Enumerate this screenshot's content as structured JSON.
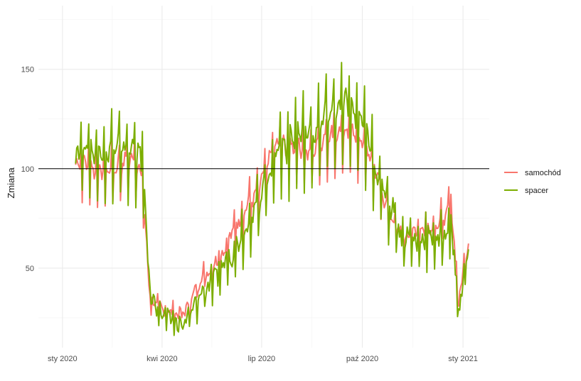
{
  "chart_data": {
    "type": "line",
    "title": "",
    "xlabel": "",
    "ylabel": "Zmiana",
    "x_range": [
      "2019-12-10",
      "2021-01-25"
    ],
    "ylim": [
      10,
      182
    ],
    "grid": true,
    "reference_line": 100,
    "legend_position": "right",
    "x_ticks": [
      {
        "date": "2020-01-01",
        "label": "sty 2020"
      },
      {
        "date": "2020-04-01",
        "label": "kwi 2020"
      },
      {
        "date": "2020-07-01",
        "label": "lip 2020"
      },
      {
        "date": "2020-10-01",
        "label": "paź 2020"
      },
      {
        "date": "2021-01-01",
        "label": "sty 2021"
      }
    ],
    "y_ticks": [
      50,
      100,
      150
    ],
    "series": [
      {
        "name": "samochód",
        "color": "#F8766D",
        "points": [
          [
            "2020-01-13",
            102
          ],
          [
            "2020-01-22",
            103
          ],
          [
            "2020-02-01",
            99
          ],
          [
            "2020-02-10",
            100
          ],
          [
            "2020-02-20",
            101
          ],
          [
            "2020-02-29",
            104
          ],
          [
            "2020-03-07",
            105
          ],
          [
            "2020-03-14",
            93
          ],
          [
            "2020-03-18",
            60
          ],
          [
            "2020-03-21",
            34
          ],
          [
            "2020-03-28",
            31
          ],
          [
            "2020-04-04",
            29
          ],
          [
            "2020-04-11",
            28
          ],
          [
            "2020-04-18",
            27
          ],
          [
            "2020-04-25",
            30
          ],
          [
            "2020-05-01",
            38
          ],
          [
            "2020-05-08",
            46
          ],
          [
            "2020-05-15",
            48
          ],
          [
            "2020-05-22",
            55
          ],
          [
            "2020-05-29",
            60
          ],
          [
            "2020-06-05",
            70
          ],
          [
            "2020-06-12",
            76
          ],
          [
            "2020-06-19",
            84
          ],
          [
            "2020-06-26",
            87
          ],
          [
            "2020-07-03",
            97
          ],
          [
            "2020-07-10",
            106
          ],
          [
            "2020-07-17",
            113
          ],
          [
            "2020-07-24",
            110
          ],
          [
            "2020-07-31",
            113
          ],
          [
            "2020-08-07",
            111
          ],
          [
            "2020-08-14",
            108
          ],
          [
            "2020-08-21",
            112
          ],
          [
            "2020-08-28",
            115
          ],
          [
            "2020-09-04",
            116
          ],
          [
            "2020-09-11",
            117
          ],
          [
            "2020-09-18",
            118
          ],
          [
            "2020-09-25",
            115
          ],
          [
            "2020-10-02",
            113
          ],
          [
            "2020-10-09",
            105
          ],
          [
            "2020-10-16",
            95
          ],
          [
            "2020-10-23",
            80
          ],
          [
            "2020-10-30",
            73
          ],
          [
            "2020-11-06",
            66
          ],
          [
            "2020-11-13",
            67
          ],
          [
            "2020-11-20",
            69
          ],
          [
            "2020-11-27",
            70
          ],
          [
            "2020-12-04",
            71
          ],
          [
            "2020-12-11",
            74
          ],
          [
            "2020-12-18",
            78
          ],
          [
            "2020-12-21",
            86
          ],
          [
            "2020-12-24",
            62
          ],
          [
            "2020-12-28",
            33
          ],
          [
            "2021-01-01",
            47
          ],
          [
            "2021-01-04",
            58
          ],
          [
            "2021-01-06",
            62
          ]
        ]
      },
      {
        "name": "spacer",
        "color": "#7CAE00",
        "points": [
          [
            "2020-01-13",
            107
          ],
          [
            "2020-01-22",
            111
          ],
          [
            "2020-02-01",
            108
          ],
          [
            "2020-02-10",
            110
          ],
          [
            "2020-02-20",
            112
          ],
          [
            "2020-02-29",
            108
          ],
          [
            "2020-03-07",
            110
          ],
          [
            "2020-03-14",
            103
          ],
          [
            "2020-03-18",
            66
          ],
          [
            "2020-03-21",
            37
          ],
          [
            "2020-03-28",
            30
          ],
          [
            "2020-04-04",
            25
          ],
          [
            "2020-04-11",
            24
          ],
          [
            "2020-04-18",
            22
          ],
          [
            "2020-04-25",
            24
          ],
          [
            "2020-05-01",
            31
          ],
          [
            "2020-05-08",
            38
          ],
          [
            "2020-05-15",
            41
          ],
          [
            "2020-05-22",
            46
          ],
          [
            "2020-05-29",
            54
          ],
          [
            "2020-06-05",
            58
          ],
          [
            "2020-06-12",
            67
          ],
          [
            "2020-06-19",
            74
          ],
          [
            "2020-06-26",
            80
          ],
          [
            "2020-07-03",
            91
          ],
          [
            "2020-07-10",
            99
          ],
          [
            "2020-07-17",
            112
          ],
          [
            "2020-07-24",
            111
          ],
          [
            "2020-07-31",
            117
          ],
          [
            "2020-08-07",
            119
          ],
          [
            "2020-08-14",
            118
          ],
          [
            "2020-08-21",
            121
          ],
          [
            "2020-08-28",
            127
          ],
          [
            "2020-09-04",
            128
          ],
          [
            "2020-09-11",
            130
          ],
          [
            "2020-09-18",
            132
          ],
          [
            "2020-09-25",
            126
          ],
          [
            "2020-10-02",
            123
          ],
          [
            "2020-10-09",
            110
          ],
          [
            "2020-10-16",
            96
          ],
          [
            "2020-10-23",
            86
          ],
          [
            "2020-10-30",
            78
          ],
          [
            "2020-11-06",
            64
          ],
          [
            "2020-11-13",
            66
          ],
          [
            "2020-11-20",
            62
          ],
          [
            "2020-11-27",
            66
          ],
          [
            "2020-12-04",
            66
          ],
          [
            "2020-12-11",
            65
          ],
          [
            "2020-12-18",
            70
          ],
          [
            "2020-12-21",
            75
          ],
          [
            "2020-12-24",
            55
          ],
          [
            "2020-12-28",
            28
          ],
          [
            "2021-01-01",
            40
          ],
          [
            "2021-01-04",
            55
          ],
          [
            "2021-01-06",
            62
          ]
        ]
      }
    ]
  }
}
